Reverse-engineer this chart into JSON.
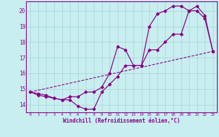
{
  "background_color": "#c8eef0",
  "grid_color": "#b0d8dc",
  "line_color": "#880088",
  "title": "Windchill (Refroidissement éolien,°C)",
  "xlim": [
    -0.5,
    23.5
  ],
  "ylim": [
    13.5,
    20.6
  ],
  "yticks": [
    14,
    15,
    16,
    17,
    18,
    19,
    20
  ],
  "xticks": [
    0,
    1,
    2,
    3,
    4,
    5,
    6,
    7,
    8,
    9,
    10,
    11,
    12,
    13,
    14,
    15,
    16,
    17,
    18,
    19,
    20,
    21,
    22,
    23
  ],
  "series1_x": [
    0,
    1,
    2,
    3,
    4,
    5,
    6,
    7,
    8,
    9,
    10,
    11,
    12,
    13,
    14,
    15,
    16,
    17,
    18,
    19,
    20,
    21,
    22,
    23
  ],
  "series1_y": [
    14.8,
    14.7,
    14.6,
    14.4,
    14.3,
    14.3,
    13.9,
    13.7,
    13.7,
    14.8,
    15.3,
    15.8,
    16.5,
    16.5,
    16.5,
    17.5,
    17.5,
    18.0,
    18.5,
    18.5,
    20.0,
    20.3,
    19.7,
    17.4
  ],
  "series2_x": [
    0,
    1,
    2,
    3,
    4,
    5,
    6,
    7,
    8,
    9,
    10,
    11,
    12,
    13,
    14,
    15,
    16,
    17,
    18,
    19,
    20,
    21,
    22,
    23
  ],
  "series2_y": [
    14.8,
    14.6,
    14.5,
    14.4,
    14.3,
    14.5,
    14.5,
    14.8,
    14.8,
    15.1,
    16.0,
    17.7,
    17.5,
    16.5,
    16.5,
    19.0,
    19.8,
    20.0,
    20.3,
    20.3,
    20.0,
    20.0,
    19.5,
    17.4
  ],
  "series3_x": [
    0,
    23
  ],
  "series3_y": [
    14.8,
    17.4
  ]
}
